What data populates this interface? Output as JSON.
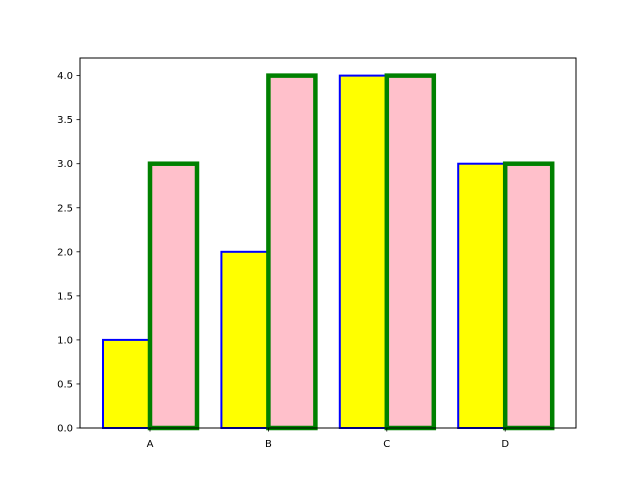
{
  "chart_data": {
    "type": "bar",
    "categories": [
      "A",
      "B",
      "C",
      "D"
    ],
    "series": [
      {
        "values": [
          1,
          2,
          4,
          3
        ],
        "fill": "#ffff00",
        "edge": "#0000ff"
      },
      {
        "values": [
          3,
          4,
          4,
          3
        ],
        "fill": "#ffc0cb",
        "edge": "#008000"
      }
    ],
    "title": "",
    "xlabel": "",
    "ylabel": "",
    "ylim": [
      0,
      4.2
    ],
    "yticks": [
      "0.0",
      "0.5",
      "1.0",
      "1.5",
      "2.0",
      "2.5",
      "3.0",
      "3.5",
      "4.0"
    ],
    "grid": false,
    "legend": "none"
  }
}
